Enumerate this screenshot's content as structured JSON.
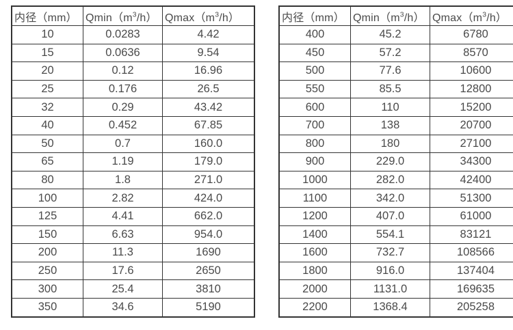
{
  "colors": {
    "background": "#ffffff",
    "border": "#333333",
    "text": "#4a4a4a"
  },
  "tables": [
    {
      "name": "flow-table-small-diameters",
      "headers": [
        "内径（mm）",
        "Qmin（m³/h）",
        "Qmax（m³/h）"
      ],
      "rows": [
        [
          "10",
          "0.0283",
          "4.42"
        ],
        [
          "15",
          "0.0636",
          "9.54"
        ],
        [
          "20",
          "0.12",
          "16.96"
        ],
        [
          "25",
          "0.176",
          "26.5"
        ],
        [
          "32",
          "0.29",
          "43.42"
        ],
        [
          "40",
          "0.452",
          "67.85"
        ],
        [
          "50",
          "0.7",
          "160.0"
        ],
        [
          "65",
          "1.19",
          "179.0"
        ],
        [
          "80",
          "1.8",
          "271.0"
        ],
        [
          "100",
          "2.82",
          "424.0"
        ],
        [
          "125",
          "4.41",
          "662.0"
        ],
        [
          "150",
          "6.63",
          "954.0"
        ],
        [
          "200",
          "11.3",
          "1690"
        ],
        [
          "250",
          "17.6",
          "2650"
        ],
        [
          "300",
          "25.4",
          "3810"
        ],
        [
          "350",
          "34.6",
          "5190"
        ]
      ]
    },
    {
      "name": "flow-table-large-diameters",
      "headers": [
        "内径（mm）",
        "Qmin（m³/h）",
        "Qmax（m³/h）"
      ],
      "rows": [
        [
          "400",
          "45.2",
          "6780"
        ],
        [
          "450",
          "57.2",
          "8570"
        ],
        [
          "500",
          "77.6",
          "10600"
        ],
        [
          "550",
          "85.5",
          "12800"
        ],
        [
          "600",
          "110",
          "15200"
        ],
        [
          "700",
          "138",
          "20700"
        ],
        [
          "800",
          "180",
          "27100"
        ],
        [
          "900",
          "229.0",
          "34300"
        ],
        [
          "1000",
          "282.0",
          "42400"
        ],
        [
          "1100",
          "342.0",
          "51300"
        ],
        [
          "1200",
          "407.0",
          "61000"
        ],
        [
          "1400",
          "554.1",
          "83121"
        ],
        [
          "1600",
          "732.7",
          "108566"
        ],
        [
          "1800",
          "916.0",
          "137404"
        ],
        [
          "2000",
          "1131.0",
          "169635"
        ],
        [
          "2200",
          "1368.4",
          "205258"
        ]
      ]
    }
  ]
}
